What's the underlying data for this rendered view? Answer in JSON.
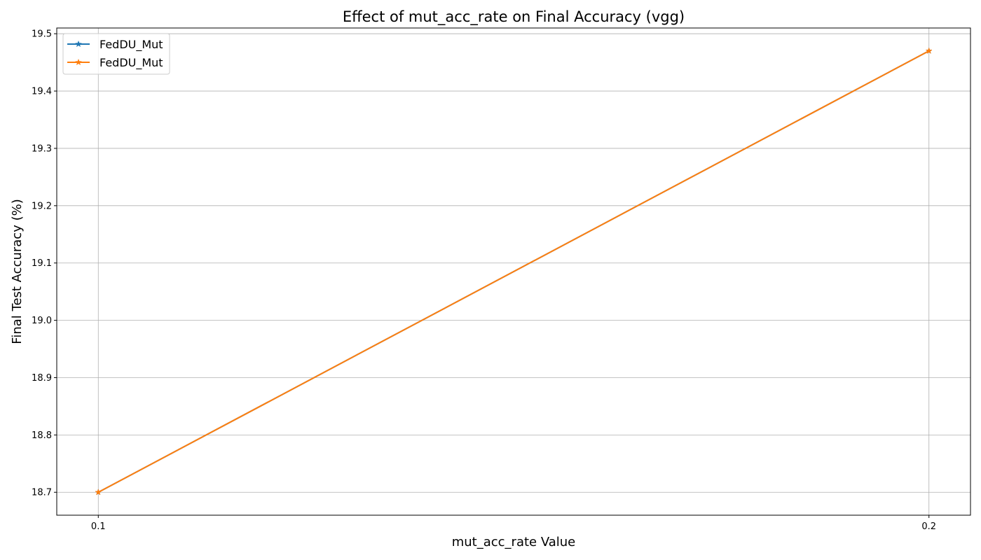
{
  "chart_data": {
    "type": "line",
    "title": "Effect of mut_acc_rate on Final Accuracy (vgg)",
    "xlabel": "mut_acc_rate Value",
    "ylabel": "Final Test Accuracy (%)",
    "x": [
      0.1,
      0.2
    ],
    "x_ticks": [
      "0.1",
      "0.2"
    ],
    "y_ticks": [
      "18.7",
      "18.8",
      "18.9",
      "19.0",
      "19.1",
      "19.2",
      "19.3",
      "19.4",
      "19.5"
    ],
    "ylim": [
      18.66,
      19.51
    ],
    "xlim": [
      0.095,
      0.205
    ],
    "grid": true,
    "legend_position": "top-left",
    "marker": "star",
    "series": [
      {
        "name": "FedDU_Mut",
        "values": [
          18.7,
          19.47
        ],
        "color": "#1f77b4"
      },
      {
        "name": "FedDU_Mut",
        "values": [
          18.7,
          19.47
        ],
        "color": "#ff7f0e"
      }
    ]
  }
}
